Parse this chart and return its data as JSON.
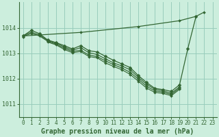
{
  "bg_color": "#cceedd",
  "grid_color": "#99ccbb",
  "line_color": "#336633",
  "xlabel": "Graphe pression niveau de la mer (hPa)",
  "xlabel_fontsize": 7.0,
  "tick_fontsize": 5.5,
  "ytick_fontsize": 6.0,
  "ylim": [
    1010.5,
    1015.0
  ],
  "xlim": [
    -0.5,
    23.5
  ],
  "yticks": [
    1011,
    1012,
    1013,
    1014
  ],
  "xticks": [
    0,
    1,
    2,
    3,
    4,
    5,
    6,
    7,
    8,
    9,
    10,
    11,
    12,
    13,
    14,
    15,
    16,
    17,
    18,
    19,
    20,
    21,
    22,
    23
  ],
  "line_straight_up": {
    "x": [
      0,
      7,
      14,
      19,
      21,
      22
    ],
    "y": [
      1013.68,
      1013.82,
      1014.05,
      1014.28,
      1014.45,
      1014.62
    ]
  },
  "lines_with_markers": [
    {
      "x": [
        0,
        1,
        2,
        3,
        4,
        5,
        6,
        7,
        8,
        9,
        10,
        11,
        12,
        13,
        14,
        15,
        16,
        17,
        18,
        19,
        20,
        21
      ],
      "y": [
        1013.68,
        1013.9,
        1013.77,
        1013.52,
        1013.42,
        1013.3,
        1013.17,
        1013.3,
        1013.1,
        1013.05,
        1012.88,
        1012.72,
        1012.58,
        1012.44,
        1012.12,
        1011.85,
        1011.62,
        1011.57,
        1011.5,
        1011.76,
        1013.18,
        1014.45
      ]
    },
    {
      "x": [
        0,
        1,
        2,
        3,
        4,
        5,
        6,
        7,
        8,
        9,
        10,
        11,
        12,
        13,
        14,
        15,
        16,
        17,
        18,
        19
      ],
      "y": [
        1013.68,
        1013.83,
        1013.72,
        1013.5,
        1013.4,
        1013.25,
        1013.12,
        1013.22,
        1013.02,
        1012.95,
        1012.78,
        1012.62,
        1012.5,
        1012.35,
        1012.05,
        1011.78,
        1011.58,
        1011.52,
        1011.43,
        1011.68
      ]
    },
    {
      "x": [
        0,
        1,
        2,
        3,
        4,
        5,
        6,
        7,
        8,
        9,
        10,
        11,
        12,
        13,
        14,
        15,
        16,
        17,
        18,
        19
      ],
      "y": [
        1013.65,
        1013.78,
        1013.68,
        1013.47,
        1013.36,
        1013.2,
        1013.07,
        1013.12,
        1012.93,
        1012.87,
        1012.7,
        1012.55,
        1012.42,
        1012.25,
        1011.98,
        1011.7,
        1011.52,
        1011.47,
        1011.38,
        1011.63
      ]
    },
    {
      "x": [
        3,
        4,
        5,
        6,
        7,
        8,
        9,
        10,
        11,
        12,
        13,
        14,
        15,
        16,
        17,
        18,
        19
      ],
      "y": [
        1013.44,
        1013.33,
        1013.15,
        1013.02,
        1013.07,
        1012.87,
        1012.82,
        1012.62,
        1012.48,
        1012.35,
        1012.17,
        1011.9,
        1011.63,
        1011.46,
        1011.42,
        1011.33,
        1011.58
      ]
    }
  ]
}
